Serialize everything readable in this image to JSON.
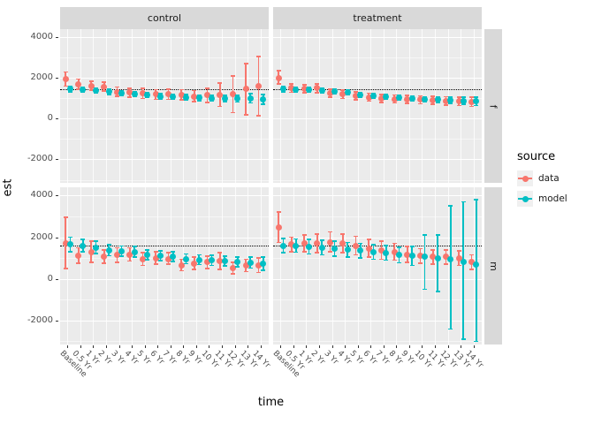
{
  "figure": {
    "y_axis_title": "est",
    "x_axis_title": "time",
    "legend": {
      "title": "source",
      "items": [
        {
          "label": "data",
          "color": "#F8766D"
        },
        {
          "label": "model",
          "color": "#00BFC4"
        }
      ]
    },
    "colors": {
      "panel_bg": "#EBEBEB",
      "strip_bg": "#D9D9D9",
      "grid": "#FFFFFF",
      "tick_text": "#4D4D4D",
      "reference_line": "#000000",
      "data_series": "#F8766D",
      "model_series": "#00BFC4"
    }
  },
  "chart_data": {
    "type": "pointrange",
    "title": "",
    "xlabel": "time",
    "ylabel": "est",
    "grid": true,
    "legend_position": "right",
    "facet_columns": [
      "control",
      "treatment"
    ],
    "facet_rows": [
      "f",
      "m"
    ],
    "x_categories": [
      "Baseline",
      "0.5 Yr",
      "1 Yr",
      "2 Yr",
      "3 Yr",
      "4 Yr",
      "5 Yr",
      "6 Yr",
      "7 Yr",
      "8 Yr",
      "9 Yr",
      "10 Yr",
      "11 Yr",
      "12 Yr",
      "13 Yr",
      "14 Yr"
    ],
    "y_ticks": [
      4000,
      2000,
      0,
      -2000
    ],
    "y_minor_ticks": [
      3000,
      1000,
      -1000,
      -3000
    ],
    "y_domain": [
      -3150,
      4400
    ],
    "reference_lines": {
      "f": 1450,
      "m": 1600
    },
    "series_names": [
      "data",
      "model"
    ],
    "point_format": [
      "est",
      "ci_low",
      "ci_high"
    ],
    "panels": [
      {
        "facet_row": "f",
        "facet_col": "control",
        "series": {
          "data": [
            [
              1950,
              1600,
              2300
            ],
            [
              1700,
              1450,
              1950
            ],
            [
              1620,
              1400,
              1850
            ],
            [
              1550,
              1350,
              1800
            ],
            [
              1300,
              1100,
              1550
            ],
            [
              1280,
              1050,
              1500
            ],
            [
              1250,
              1000,
              1480
            ],
            [
              1200,
              950,
              1430
            ],
            [
              1200,
              950,
              1450
            ],
            [
              1180,
              930,
              1430
            ],
            [
              1100,
              850,
              1380
            ],
            [
              1150,
              800,
              1500
            ],
            [
              1150,
              600,
              1750
            ],
            [
              1200,
              300,
              2100
            ],
            [
              1450,
              200,
              2700
            ],
            [
              1600,
              150,
              3050
            ]
          ],
          "model": [
            [
              1450,
              1320,
              1580
            ],
            [
              1420,
              1300,
              1550
            ],
            [
              1400,
              1280,
              1520
            ],
            [
              1330,
              1200,
              1450
            ],
            [
              1250,
              1130,
              1380
            ],
            [
              1200,
              1080,
              1330
            ],
            [
              1150,
              1030,
              1280
            ],
            [
              1100,
              980,
              1230
            ],
            [
              1080,
              950,
              1200
            ],
            [
              1050,
              920,
              1180
            ],
            [
              1020,
              890,
              1150
            ],
            [
              1000,
              860,
              1140
            ],
            [
              990,
              840,
              1140
            ],
            [
              980,
              820,
              1150
            ],
            [
              1000,
              780,
              1220
            ],
            [
              950,
              700,
              1200
            ]
          ]
        }
      },
      {
        "facet_row": "f",
        "facet_col": "treatment",
        "series": {
          "data": [
            [
              2000,
              1700,
              2350
            ],
            [
              1500,
              1300,
              1700
            ],
            [
              1470,
              1280,
              1660
            ],
            [
              1500,
              1280,
              1720
            ],
            [
              1250,
              1050,
              1450
            ],
            [
              1200,
              1000,
              1400
            ],
            [
              1120,
              920,
              1320
            ],
            [
              1050,
              860,
              1250
            ],
            [
              1000,
              810,
              1200
            ],
            [
              970,
              780,
              1160
            ],
            [
              950,
              760,
              1140
            ],
            [
              930,
              740,
              1120
            ],
            [
              900,
              710,
              1090
            ],
            [
              880,
              680,
              1080
            ],
            [
              860,
              650,
              1070
            ],
            [
              830,
              600,
              1060
            ]
          ],
          "model": [
            [
              1450,
              1330,
              1570
            ],
            [
              1440,
              1320,
              1560
            ],
            [
              1420,
              1300,
              1540
            ],
            [
              1400,
              1280,
              1520
            ],
            [
              1330,
              1210,
              1450
            ],
            [
              1280,
              1160,
              1400
            ],
            [
              1180,
              1060,
              1300
            ],
            [
              1120,
              1000,
              1240
            ],
            [
              1070,
              950,
              1190
            ],
            [
              1020,
              900,
              1140
            ],
            [
              980,
              860,
              1100
            ],
            [
              950,
              820,
              1080
            ],
            [
              930,
              790,
              1070
            ],
            [
              900,
              750,
              1050
            ],
            [
              880,
              700,
              1060
            ],
            [
              850,
              650,
              1050
            ]
          ]
        }
      },
      {
        "facet_row": "m",
        "facet_col": "control",
        "series": {
          "data": [
            [
              1700,
              500,
              2950
            ],
            [
              1100,
              750,
              1500
            ],
            [
              1300,
              800,
              1800
            ],
            [
              1050,
              750,
              1400
            ],
            [
              1150,
              800,
              1500
            ],
            [
              1150,
              850,
              1500
            ],
            [
              950,
              650,
              1250
            ],
            [
              1000,
              700,
              1300
            ],
            [
              950,
              700,
              1250
            ],
            [
              650,
              400,
              950
            ],
            [
              750,
              450,
              1050
            ],
            [
              800,
              500,
              1100
            ],
            [
              850,
              450,
              1250
            ],
            [
              500,
              250,
              800
            ],
            [
              650,
              350,
              950
            ],
            [
              650,
              300,
              1000
            ]
          ],
          "model": [
            [
              1650,
              1300,
              2000
            ],
            [
              1600,
              1300,
              1900
            ],
            [
              1500,
              1220,
              1800
            ],
            [
              1380,
              1120,
              1650
            ],
            [
              1320,
              1080,
              1580
            ],
            [
              1280,
              1050,
              1550
            ],
            [
              1150,
              930,
              1400
            ],
            [
              1100,
              880,
              1350
            ],
            [
              1050,
              830,
              1300
            ],
            [
              950,
              730,
              1200
            ],
            [
              900,
              680,
              1150
            ],
            [
              880,
              650,
              1130
            ],
            [
              850,
              620,
              1100
            ],
            [
              800,
              570,
              1050
            ],
            [
              780,
              520,
              1050
            ],
            [
              720,
              420,
              1050
            ]
          ]
        }
      },
      {
        "facet_row": "m",
        "facet_col": "treatment",
        "series": {
          "data": [
            [
              2450,
              1750,
              3200
            ],
            [
              1650,
              1300,
              2000
            ],
            [
              1700,
              1300,
              2100
            ],
            [
              1700,
              1250,
              2150
            ],
            [
              1750,
              1300,
              2250
            ],
            [
              1700,
              1250,
              2150
            ],
            [
              1600,
              1150,
              2050
            ],
            [
              1450,
              1050,
              1900
            ],
            [
              1350,
              950,
              1800
            ],
            [
              1300,
              900,
              1700
            ],
            [
              1150,
              800,
              1550
            ],
            [
              1100,
              750,
              1450
            ],
            [
              1050,
              700,
              1400
            ],
            [
              1050,
              700,
              1400
            ],
            [
              1000,
              650,
              1350
            ],
            [
              800,
              450,
              1150
            ]
          ],
          "model": [
            [
              1600,
              1250,
              1950
            ],
            [
              1600,
              1280,
              1920
            ],
            [
              1550,
              1200,
              1900
            ],
            [
              1500,
              1150,
              1850
            ],
            [
              1450,
              1100,
              1800
            ],
            [
              1400,
              1050,
              1750
            ],
            [
              1350,
              1000,
              1700
            ],
            [
              1300,
              950,
              1650
            ],
            [
              1250,
              900,
              1600
            ],
            [
              1150,
              780,
              1520
            ],
            [
              1100,
              650,
              1550
            ],
            [
              1050,
              -500,
              2100
            ],
            [
              1000,
              -600,
              2100
            ],
            [
              950,
              -2400,
              3500
            ],
            [
              800,
              -2900,
              3700
            ],
            [
              700,
              -3000,
              3800
            ]
          ]
        }
      }
    ]
  }
}
